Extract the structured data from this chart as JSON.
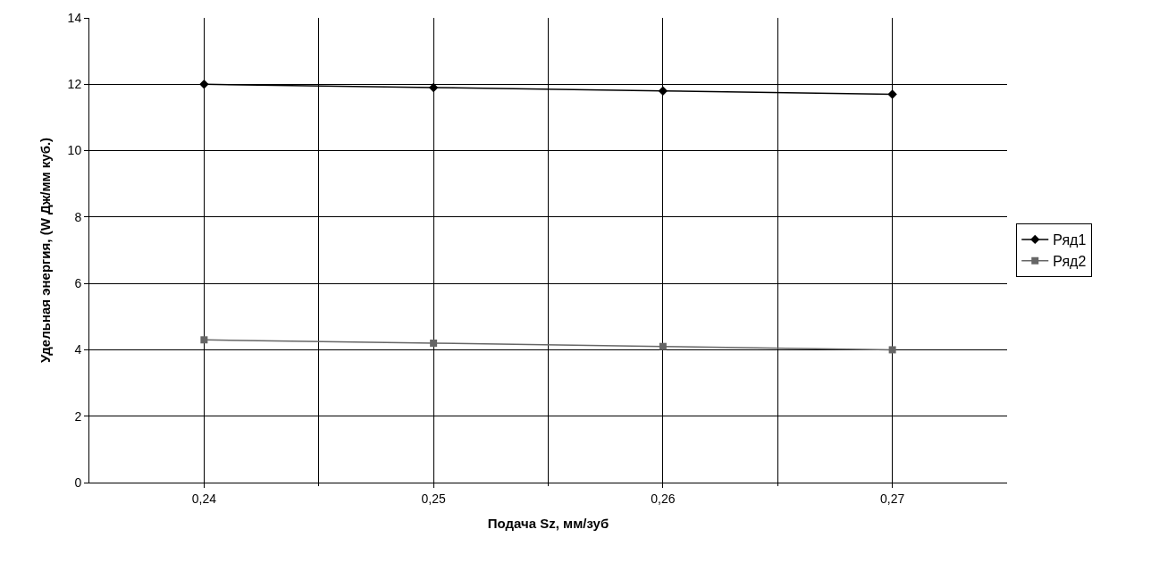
{
  "chart_data": {
    "type": "line",
    "xlabel": "Подача Sz, мм/зуб",
    "ylabel": "Удельная энергия, (W Дж/мм куб.)",
    "categories": [
      "0,24",
      "0,25",
      "0,26",
      "0,27"
    ],
    "series": [
      {
        "name": "Ряд1",
        "color": "#000000",
        "marker": "diamond",
        "values": [
          12.0,
          11.9,
          11.8,
          11.7
        ]
      },
      {
        "name": "Ряд2",
        "color": "#666666",
        "marker": "square",
        "values": [
          4.3,
          4.2,
          4.1,
          4.0
        ]
      }
    ],
    "ylim": [
      0,
      14
    ],
    "yticks": [
      0,
      2,
      4,
      6,
      8,
      10,
      12,
      14
    ],
    "grid": true,
    "legend": "right",
    "line_style": "solid"
  }
}
